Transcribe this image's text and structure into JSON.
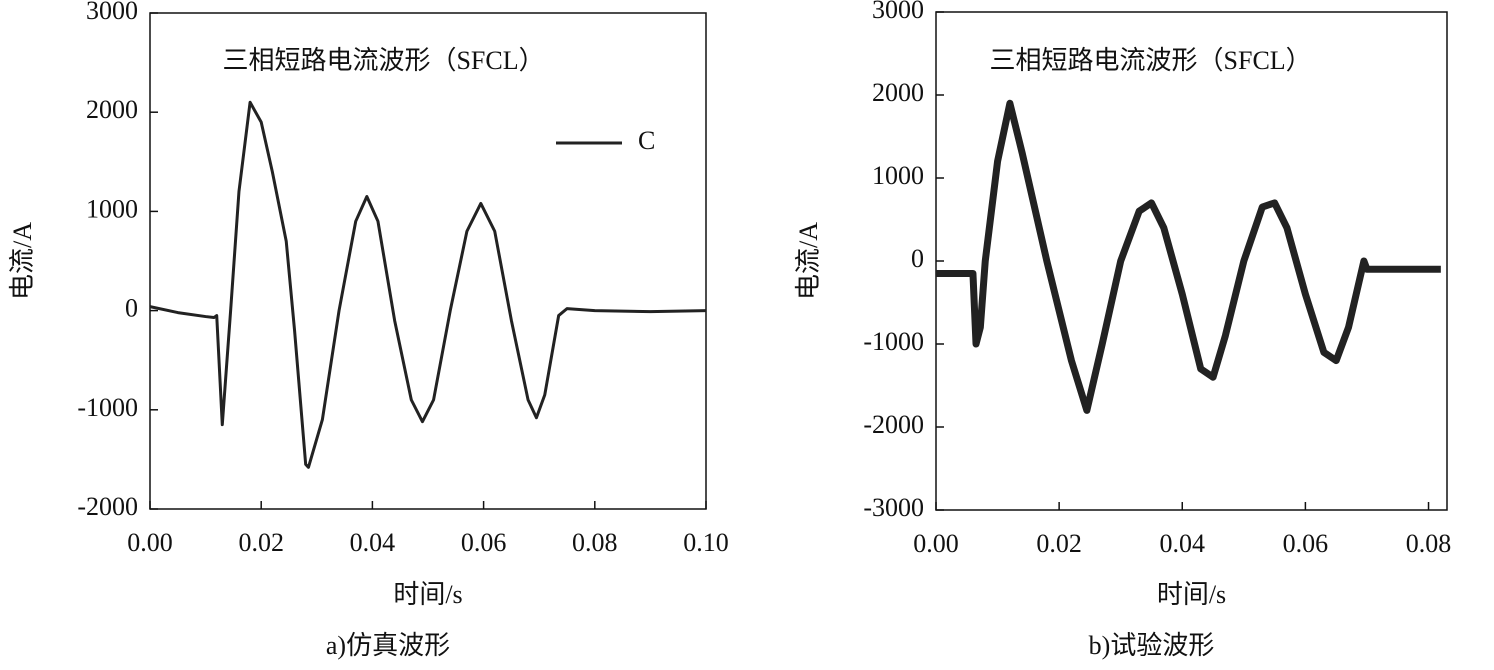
{
  "chart_data": [
    {
      "type": "line",
      "title": "三相短路电流波形（SFCL）",
      "xlabel": "时间/s",
      "ylabel": "电流/A",
      "caption": "a)仿真波形",
      "x": [
        0,
        0.005,
        0.01,
        0.0115,
        0.012,
        0.013,
        0.0145,
        0.016,
        0.018,
        0.02,
        0.022,
        0.0245,
        0.026,
        0.028,
        0.0285,
        0.031,
        0.034,
        0.037,
        0.039,
        0.041,
        0.044,
        0.047,
        0.049,
        0.051,
        0.054,
        0.057,
        0.0595,
        0.062,
        0.065,
        0.068,
        0.0695,
        0.071,
        0.0735,
        0.075,
        0.08,
        0.09,
        0.1
      ],
      "series": [
        {
          "name": "C",
          "color": "#222222",
          "values": [
            40,
            -20,
            -60,
            -70,
            -50,
            -1150,
            0,
            1200,
            2100,
            1900,
            1400,
            700,
            -200,
            -1550,
            -1580,
            -1100,
            0,
            900,
            1150,
            900,
            -100,
            -900,
            -1120,
            -900,
            0,
            800,
            1080,
            800,
            -100,
            -900,
            -1080,
            -850,
            -50,
            20,
            0,
            -10,
            0
          ]
        }
      ],
      "xlim": [
        0,
        0.1
      ],
      "ylim": [
        -2000,
        3000
      ],
      "xticks": [
        {
          "value": 0,
          "label": "0.00"
        },
        {
          "value": 0.02,
          "label": "0.02"
        },
        {
          "value": 0.04,
          "label": "0.04"
        },
        {
          "value": 0.06,
          "label": "0.06"
        },
        {
          "value": 0.08,
          "label": "0.08"
        },
        {
          "value": 0.1,
          "label": "0.10"
        }
      ],
      "yticks": [
        -2000,
        -1000,
        0,
        1000,
        2000,
        3000
      ],
      "legend": "upper right"
    },
    {
      "type": "line",
      "title": "三相短路电流波形（SFCL）",
      "xlabel": "时间/s",
      "ylabel": "电流/A",
      "caption": "b)试验波形",
      "x": [
        0,
        0.006,
        0.0065,
        0.0072,
        0.008,
        0.01,
        0.012,
        0.014,
        0.018,
        0.022,
        0.0245,
        0.027,
        0.03,
        0.033,
        0.035,
        0.037,
        0.04,
        0.043,
        0.045,
        0.047,
        0.05,
        0.053,
        0.055,
        0.057,
        0.06,
        0.063,
        0.065,
        0.067,
        0.0695,
        0.07,
        0.082
      ],
      "series": [
        {
          "name": null,
          "color": "#222222",
          "values": [
            -150,
            -150,
            -1000,
            -800,
            0,
            1200,
            1900,
            1300,
            0,
            -1200,
            -1800,
            -1000,
            0,
            600,
            700,
            400,
            -400,
            -1300,
            -1400,
            -900,
            0,
            650,
            700,
            400,
            -400,
            -1100,
            -1200,
            -800,
            0,
            -100,
            -100
          ]
        }
      ],
      "xlim": [
        0,
        0.083
      ],
      "ylim": [
        -3000,
        3000
      ],
      "xticks": [
        {
          "value": 0,
          "label": "0.00"
        },
        {
          "value": 0.02,
          "label": "0.02"
        },
        {
          "value": 0.04,
          "label": "0.04"
        },
        {
          "value": 0.06,
          "label": "0.06"
        },
        {
          "value": 0.08,
          "label": "0.08"
        }
      ],
      "yticks": [
        -3000,
        -2000,
        -1000,
        0,
        1000,
        2000,
        3000
      ]
    }
  ]
}
